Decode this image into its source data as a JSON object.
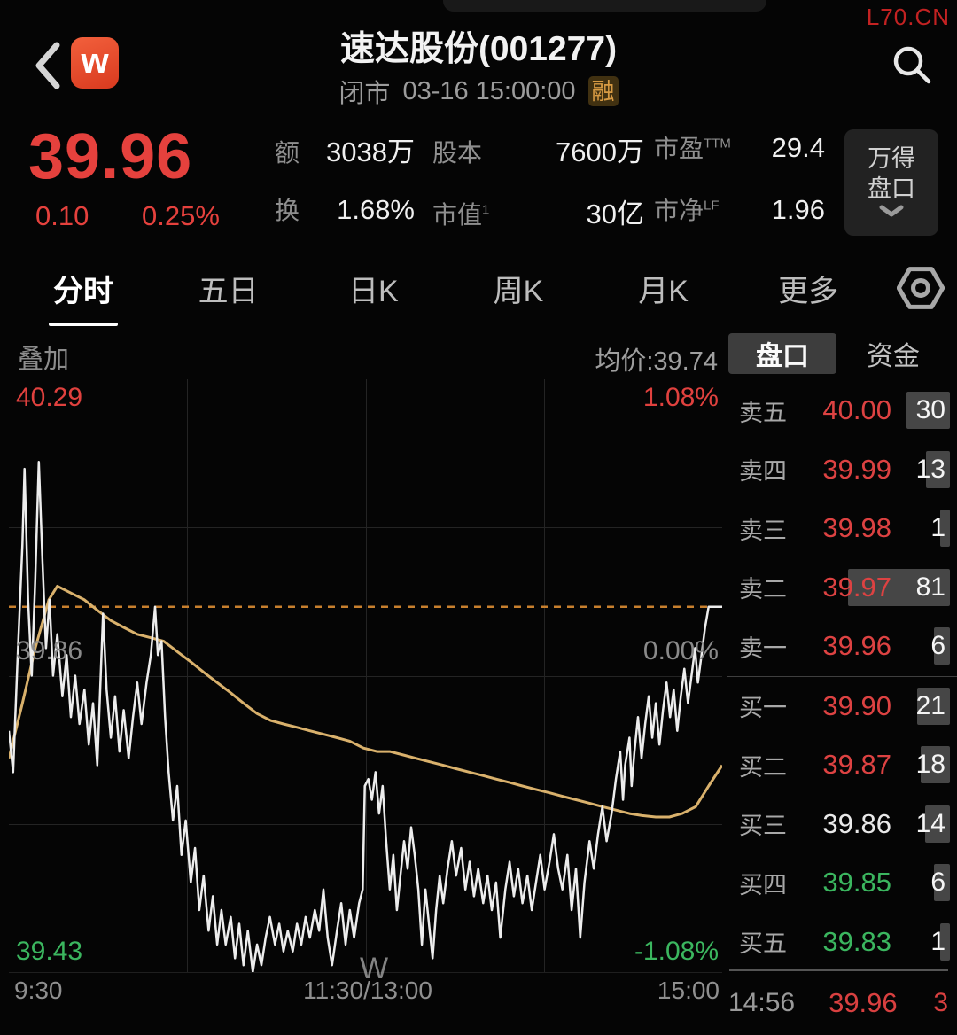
{
  "watermark": "L70.CN",
  "colors": {
    "up": "#dd4242",
    "down": "#3bb65f",
    "flat": "#e9e9e9",
    "avg_line": "#d9b16c",
    "price_line": "#ededed",
    "dashed_line": "#c8802e"
  },
  "header": {
    "logo_letter": "w",
    "title": "速达股份(001277)",
    "market_status": "闭市",
    "datetime": "03-16 15:00:00",
    "margin_badge": "融"
  },
  "quote": {
    "last": "39.96",
    "change": "0.10",
    "change_pct": "0.25%"
  },
  "stats": [
    {
      "label": "额",
      "sup": "",
      "value": "3038万"
    },
    {
      "label": "股本",
      "sup": "",
      "value": "7600万"
    },
    {
      "label": "市盈",
      "sup": "TTM",
      "value": "29.4"
    },
    {
      "label": "换",
      "sup": "",
      "value": "1.68%"
    },
    {
      "label": "市值",
      "sup": "1",
      "value": "30亿"
    },
    {
      "label": "市净",
      "sup": "LF",
      "value": "1.96"
    }
  ],
  "wind_panel": {
    "line1": "万得",
    "line2": "盘口"
  },
  "tabs": [
    {
      "label": "分时",
      "active": true
    },
    {
      "label": "五日",
      "active": false
    },
    {
      "label": "日K",
      "active": false
    },
    {
      "label": "周K",
      "active": false
    },
    {
      "label": "月K",
      "active": false
    },
    {
      "label": "更多",
      "active": false
    }
  ],
  "subbar": {
    "overlay_label": "叠加",
    "avg_label": "均价:39.74",
    "panel_tabs": [
      {
        "label": "盘口",
        "active": true
      },
      {
        "label": "资金",
        "active": false
      }
    ]
  },
  "chart": {
    "labels": {
      "high": "40.29",
      "high_pct": "1.08%",
      "mid": "39.86",
      "mid_pct": "0.00%",
      "low": "39.43",
      "low_pct": "-1.08%"
    },
    "x_axis": [
      "9:30",
      "11:30/13:00",
      "15:00"
    ],
    "watermark_letter": "W"
  },
  "chart_data": {
    "type": "line",
    "title": "分时走势",
    "ylim": [
      39.43,
      40.29
    ],
    "prev_close": 39.86,
    "last_price": 39.96,
    "avg_price": 39.74,
    "x_range": [
      "9:30",
      "15:00"
    ],
    "grid": {
      "v_fractions": [
        0.25,
        0.5,
        0.75
      ],
      "h_fractions": [
        0.25,
        0.5,
        0.75
      ]
    },
    "series": [
      {
        "name": "price",
        "points": [
          [
            0.0,
            39.78
          ],
          [
            0.006,
            39.72
          ],
          [
            0.012,
            39.88
          ],
          [
            0.019,
            40.05
          ],
          [
            0.022,
            40.16
          ],
          [
            0.027,
            39.97
          ],
          [
            0.032,
            39.86
          ],
          [
            0.037,
            40.0
          ],
          [
            0.042,
            40.17
          ],
          [
            0.047,
            40.03
          ],
          [
            0.052,
            39.9
          ],
          [
            0.057,
            39.97
          ],
          [
            0.062,
            39.86
          ],
          [
            0.068,
            39.92
          ],
          [
            0.075,
            39.83
          ],
          [
            0.081,
            39.89
          ],
          [
            0.087,
            39.8
          ],
          [
            0.093,
            39.86
          ],
          [
            0.099,
            39.79
          ],
          [
            0.106,
            39.84
          ],
          [
            0.112,
            39.76
          ],
          [
            0.118,
            39.82
          ],
          [
            0.124,
            39.73
          ],
          [
            0.132,
            39.95
          ],
          [
            0.137,
            39.84
          ],
          [
            0.143,
            39.77
          ],
          [
            0.149,
            39.83
          ],
          [
            0.155,
            39.75
          ],
          [
            0.161,
            39.81
          ],
          [
            0.168,
            39.74
          ],
          [
            0.174,
            39.8
          ],
          [
            0.18,
            39.85
          ],
          [
            0.186,
            39.79
          ],
          [
            0.193,
            39.85
          ],
          [
            0.199,
            39.89
          ],
          [
            0.205,
            39.96
          ],
          [
            0.209,
            39.89
          ],
          [
            0.214,
            39.91
          ],
          [
            0.219,
            39.8
          ],
          [
            0.224,
            39.72
          ],
          [
            0.23,
            39.65
          ],
          [
            0.236,
            39.7
          ],
          [
            0.242,
            39.6
          ],
          [
            0.248,
            39.65
          ],
          [
            0.255,
            39.56
          ],
          [
            0.261,
            39.61
          ],
          [
            0.267,
            39.52
          ],
          [
            0.273,
            39.57
          ],
          [
            0.28,
            39.49
          ],
          [
            0.286,
            39.54
          ],
          [
            0.292,
            39.47
          ],
          [
            0.298,
            39.52
          ],
          [
            0.304,
            39.47
          ],
          [
            0.311,
            39.51
          ],
          [
            0.317,
            39.45
          ],
          [
            0.323,
            39.5
          ],
          [
            0.329,
            39.44
          ],
          [
            0.335,
            39.49
          ],
          [
            0.342,
            39.43
          ],
          [
            0.348,
            39.47
          ],
          [
            0.354,
            39.44
          ],
          [
            0.36,
            39.48
          ],
          [
            0.366,
            39.51
          ],
          [
            0.373,
            39.47
          ],
          [
            0.379,
            39.5
          ],
          [
            0.385,
            39.46
          ],
          [
            0.391,
            39.49
          ],
          [
            0.398,
            39.46
          ],
          [
            0.404,
            39.5
          ],
          [
            0.41,
            39.47
          ],
          [
            0.416,
            39.51
          ],
          [
            0.422,
            39.48
          ],
          [
            0.429,
            39.52
          ],
          [
            0.435,
            39.49
          ],
          [
            0.441,
            39.55
          ],
          [
            0.447,
            39.48
          ],
          [
            0.453,
            39.44
          ],
          [
            0.46,
            39.49
          ],
          [
            0.466,
            39.53
          ],
          [
            0.472,
            39.47
          ],
          [
            0.478,
            39.52
          ],
          [
            0.484,
            39.48
          ],
          [
            0.491,
            39.53
          ],
          [
            0.496,
            39.55
          ],
          [
            0.499,
            39.7
          ],
          [
            0.504,
            39.71
          ],
          [
            0.509,
            39.68
          ],
          [
            0.514,
            39.72
          ],
          [
            0.519,
            39.66
          ],
          [
            0.524,
            39.7
          ],
          [
            0.529,
            39.62
          ],
          [
            0.534,
            39.55
          ],
          [
            0.539,
            39.6
          ],
          [
            0.544,
            39.52
          ],
          [
            0.549,
            39.57
          ],
          [
            0.554,
            39.62
          ],
          [
            0.559,
            39.58
          ],
          [
            0.564,
            39.64
          ],
          [
            0.569,
            39.6
          ],
          [
            0.574,
            39.55
          ],
          [
            0.579,
            39.47
          ],
          [
            0.584,
            39.55
          ],
          [
            0.589,
            39.5
          ],
          [
            0.594,
            39.45
          ],
          [
            0.599,
            39.52
          ],
          [
            0.604,
            39.57
          ],
          [
            0.609,
            39.53
          ],
          [
            0.615,
            39.58
          ],
          [
            0.621,
            39.62
          ],
          [
            0.627,
            39.57
          ],
          [
            0.634,
            39.61
          ],
          [
            0.64,
            39.55
          ],
          [
            0.646,
            39.59
          ],
          [
            0.652,
            39.54
          ],
          [
            0.658,
            39.58
          ],
          [
            0.665,
            39.53
          ],
          [
            0.671,
            39.57
          ],
          [
            0.677,
            39.52
          ],
          [
            0.683,
            39.56
          ],
          [
            0.689,
            39.48
          ],
          [
            0.696,
            39.55
          ],
          [
            0.702,
            39.59
          ],
          [
            0.708,
            39.54
          ],
          [
            0.714,
            39.58
          ],
          [
            0.72,
            39.53
          ],
          [
            0.727,
            39.57
          ],
          [
            0.733,
            39.52
          ],
          [
            0.739,
            39.56
          ],
          [
            0.745,
            39.6
          ],
          [
            0.751,
            39.55
          ],
          [
            0.758,
            39.59
          ],
          [
            0.764,
            39.63
          ],
          [
            0.77,
            39.58
          ],
          [
            0.776,
            39.55
          ],
          [
            0.783,
            39.6
          ],
          [
            0.789,
            39.52
          ],
          [
            0.795,
            39.58
          ],
          [
            0.801,
            39.48
          ],
          [
            0.807,
            39.56
          ],
          [
            0.814,
            39.62
          ],
          [
            0.82,
            39.58
          ],
          [
            0.826,
            39.63
          ],
          [
            0.832,
            39.67
          ],
          [
            0.838,
            39.62
          ],
          [
            0.845,
            39.66
          ],
          [
            0.851,
            39.71
          ],
          [
            0.857,
            39.75
          ],
          [
            0.861,
            39.68
          ],
          [
            0.864,
            39.73
          ],
          [
            0.87,
            39.77
          ],
          [
            0.873,
            39.7
          ],
          [
            0.877,
            39.75
          ],
          [
            0.882,
            39.8
          ],
          [
            0.887,
            39.74
          ],
          [
            0.892,
            39.79
          ],
          [
            0.897,
            39.83
          ],
          [
            0.902,
            39.77
          ],
          [
            0.907,
            39.82
          ],
          [
            0.912,
            39.76
          ],
          [
            0.917,
            39.81
          ],
          [
            0.922,
            39.85
          ],
          [
            0.927,
            39.8
          ],
          [
            0.932,
            39.84
          ],
          [
            0.937,
            39.78
          ],
          [
            0.942,
            39.83
          ],
          [
            0.947,
            39.87
          ],
          [
            0.952,
            39.82
          ],
          [
            0.957,
            39.86
          ],
          [
            0.962,
            39.9
          ],
          [
            0.966,
            39.85
          ],
          [
            0.971,
            39.89
          ],
          [
            0.976,
            39.93
          ],
          [
            0.981,
            39.96
          ],
          [
            0.989,
            39.96
          ],
          [
            1.0,
            39.96
          ]
        ]
      },
      {
        "name": "avg",
        "points": [
          [
            0.0,
            39.74
          ],
          [
            0.019,
            39.82
          ],
          [
            0.037,
            39.9
          ],
          [
            0.056,
            39.97
          ],
          [
            0.068,
            39.99
          ],
          [
            0.087,
            39.98
          ],
          [
            0.106,
            39.97
          ],
          [
            0.124,
            39.955
          ],
          [
            0.143,
            39.94
          ],
          [
            0.161,
            39.93
          ],
          [
            0.18,
            39.92
          ],
          [
            0.199,
            39.915
          ],
          [
            0.217,
            39.91
          ],
          [
            0.236,
            39.895
          ],
          [
            0.255,
            39.88
          ],
          [
            0.273,
            39.865
          ],
          [
            0.292,
            39.85
          ],
          [
            0.311,
            39.835
          ],
          [
            0.329,
            39.82
          ],
          [
            0.348,
            39.805
          ],
          [
            0.367,
            39.795
          ],
          [
            0.385,
            39.79
          ],
          [
            0.404,
            39.785
          ],
          [
            0.422,
            39.78
          ],
          [
            0.441,
            39.775
          ],
          [
            0.46,
            39.77
          ],
          [
            0.478,
            39.765
          ],
          [
            0.497,
            39.755
          ],
          [
            0.516,
            39.75
          ],
          [
            0.534,
            39.75
          ],
          [
            0.553,
            39.745
          ],
          [
            0.571,
            39.74
          ],
          [
            0.59,
            39.735
          ],
          [
            0.609,
            39.73
          ],
          [
            0.627,
            39.725
          ],
          [
            0.646,
            39.72
          ],
          [
            0.665,
            39.715
          ],
          [
            0.683,
            39.71
          ],
          [
            0.702,
            39.705
          ],
          [
            0.72,
            39.7
          ],
          [
            0.739,
            39.695
          ],
          [
            0.758,
            39.69
          ],
          [
            0.776,
            39.685
          ],
          [
            0.795,
            39.68
          ],
          [
            0.814,
            39.675
          ],
          [
            0.832,
            39.67
          ],
          [
            0.851,
            39.665
          ],
          [
            0.87,
            39.66
          ],
          [
            0.888,
            39.657
          ],
          [
            0.907,
            39.655
          ],
          [
            0.926,
            39.655
          ],
          [
            0.944,
            39.66
          ],
          [
            0.963,
            39.67
          ],
          [
            0.981,
            39.7
          ],
          [
            1.0,
            39.73
          ]
        ]
      }
    ]
  },
  "order_book": {
    "max_volume": 81,
    "sell": [
      {
        "label": "卖五",
        "price": "40.00",
        "volume": 30,
        "color": "up"
      },
      {
        "label": "卖四",
        "price": "39.99",
        "volume": 13,
        "color": "up"
      },
      {
        "label": "卖三",
        "price": "39.98",
        "volume": 1,
        "color": "up"
      },
      {
        "label": "卖二",
        "price": "39.97",
        "volume": 81,
        "color": "up"
      },
      {
        "label": "卖一",
        "price": "39.96",
        "volume": 6,
        "color": "up"
      }
    ],
    "buy": [
      {
        "label": "买一",
        "price": "39.90",
        "volume": 21,
        "color": "up"
      },
      {
        "label": "买二",
        "price": "39.87",
        "volume": 18,
        "color": "up"
      },
      {
        "label": "买三",
        "price": "39.86",
        "volume": 14,
        "color": "flat"
      },
      {
        "label": "买四",
        "price": "39.85",
        "volume": 6,
        "color": "down"
      },
      {
        "label": "买五",
        "price": "39.83",
        "volume": 1,
        "color": "down"
      }
    ]
  },
  "ticker": {
    "time": "14:56",
    "price": "39.96",
    "volume": "3"
  }
}
